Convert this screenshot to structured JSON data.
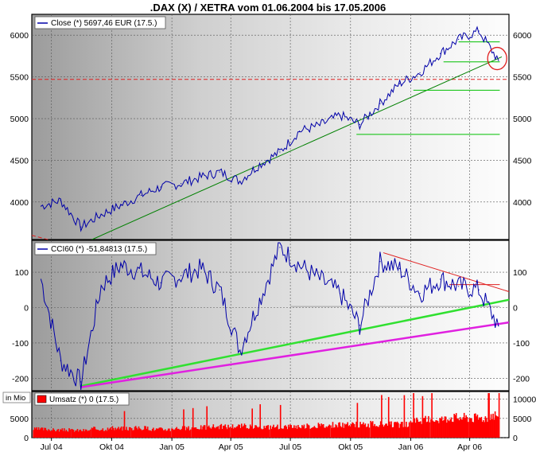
{
  "chart_data": [
    {
      "type": "line",
      "title": ".DAX (X) / XETRA vom 01.06.2004 bis 17.05.2006",
      "legend": "Close (*) 5697,46 EUR (17.5.)",
      "y_ticks": [
        4000,
        4500,
        5000,
        5500,
        6000
      ],
      "ylim": [
        3550,
        6250
      ],
      "series": [
        {
          "values_by_month": [
            {
              "x": "2004-06",
              "y": 3950
            },
            {
              "x": "2004-07",
              "y": 4020
            },
            {
              "x": "2004-08",
              "y": 3700
            },
            {
              "x": "2004-09",
              "y": 3850
            },
            {
              "x": "2004-10",
              "y": 3960
            },
            {
              "x": "2004-11",
              "y": 4080
            },
            {
              "x": "2004-12",
              "y": 4180
            },
            {
              "x": "2005-01",
              "y": 4220
            },
            {
              "x": "2005-02",
              "y": 4300
            },
            {
              "x": "2005-03",
              "y": 4360
            },
            {
              "x": "2005-04",
              "y": 4250
            },
            {
              "x": "2005-05",
              "y": 4450
            },
            {
              "x": "2005-06",
              "y": 4600
            },
            {
              "x": "2005-07",
              "y": 4850
            },
            {
              "x": "2005-08",
              "y": 4920
            },
            {
              "x": "2005-09",
              "y": 5040
            },
            {
              "x": "2005-10",
              "y": 4930
            },
            {
              "x": "2005-11",
              "y": 5180
            },
            {
              "x": "2005-12",
              "y": 5420
            },
            {
              "x": "2006-01",
              "y": 5550
            },
            {
              "x": "2006-02",
              "y": 5780
            },
            {
              "x": "2006-03",
              "y": 5950
            },
            {
              "x": "2006-04",
              "y": 6050
            },
            {
              "x": "2006-05",
              "y": 5697
            }
          ]
        }
      ],
      "reference_lines": [
        {
          "kind": "horizontal",
          "y": 5470,
          "color": "#e02020",
          "style": "dashed"
        },
        {
          "kind": "trend",
          "from": {
            "x": "2004-06-01",
            "y": 3600
          },
          "to": {
            "x": "2004-07-10",
            "y": 3520
          },
          "color": "#e02020",
          "style": "dashed"
        },
        {
          "kind": "trend",
          "from": {
            "x": "2004-09-01",
            "y": 3550
          },
          "to": {
            "x": "2006-05-20",
            "y": 5740
          },
          "color": "#008000"
        },
        {
          "kind": "horizontal",
          "y": 4810,
          "from": "2005-10-10",
          "to": "2006-05-17",
          "color": "#00c000"
        },
        {
          "kind": "horizontal",
          "y": 5340,
          "from": "2006-01-05",
          "to": "2006-05-17",
          "color": "#00c000"
        },
        {
          "kind": "horizontal",
          "y": 5680,
          "from": "2006-02-20",
          "to": "2006-05-17",
          "color": "#00c000"
        },
        {
          "kind": "horizontal",
          "y": 5920,
          "from": "2006-03-15",
          "to": "2006-05-17",
          "color": "#00c000"
        }
      ],
      "grid": true,
      "highlight_circle": {
        "x": "2006-05-13",
        "y": 5720,
        "color": "#e02020"
      }
    },
    {
      "type": "line",
      "legend": "CCI60 (*) -51,84813 (17.5.)",
      "y_ticks": [
        -200,
        -100,
        0,
        100
      ],
      "ylim": [
        -235,
        190
      ],
      "series": [
        {
          "values_by_month": [
            {
              "x": "2004-06",
              "y": 80
            },
            {
              "x": "2004-07",
              "y": -150
            },
            {
              "x": "2004-08",
              "y": -210
            },
            {
              "x": "2004-09",
              "y": 60
            },
            {
              "x": "2004-10",
              "y": 120
            },
            {
              "x": "2004-11",
              "y": 100
            },
            {
              "x": "2004-12",
              "y": 70
            },
            {
              "x": "2005-01",
              "y": 90
            },
            {
              "x": "2005-02",
              "y": 110
            },
            {
              "x": "2005-03",
              "y": 50
            },
            {
              "x": "2005-04",
              "y": -120
            },
            {
              "x": "2005-05",
              "y": 20
            },
            {
              "x": "2005-06",
              "y": 170
            },
            {
              "x": "2005-07",
              "y": 120
            },
            {
              "x": "2005-08",
              "y": 80
            },
            {
              "x": "2005-09",
              "y": 40
            },
            {
              "x": "2005-10",
              "y": -50
            },
            {
              "x": "2005-11",
              "y": 130
            },
            {
              "x": "2005-12",
              "y": 110
            },
            {
              "x": "2006-01",
              "y": 40
            },
            {
              "x": "2006-02",
              "y": 80
            },
            {
              "x": "2006-03",
              "y": 60
            },
            {
              "x": "2006-04",
              "y": 50
            },
            {
              "x": "2006-05",
              "y": -52
            }
          ]
        }
      ],
      "reference_lines": [
        {
          "kind": "horizontal",
          "y": 3,
          "from": "2005-07-01",
          "to": "2006-05-17",
          "color": "#a0a0a0"
        },
        {
          "kind": "trend",
          "from": {
            "x": "2005-11-20",
            "y": 155
          },
          "to": {
            "x": "2006-05-31",
            "y": 45
          },
          "color": "#e02020"
        },
        {
          "kind": "horizontal",
          "y": 65,
          "from": "2006-03-01",
          "to": "2006-05-17",
          "color": "#e02020"
        },
        {
          "kind": "trend",
          "from": {
            "x": "2004-08-15",
            "y": -222
          },
          "to": {
            "x": "2006-05-31",
            "y": 22
          },
          "color": "#30e030"
        },
        {
          "kind": "trend",
          "from": {
            "x": "2004-08-15",
            "y": -225
          },
          "to": {
            "x": "2006-05-31",
            "y": -42
          },
          "color": "#e020e0"
        }
      ],
      "grid": true
    },
    {
      "type": "bar",
      "legend": "Umsatz (*) 0 (17.5.)",
      "unit": "in Mio",
      "y_ticks": [
        0,
        5000,
        10000
      ],
      "ylim": [
        0,
        12000
      ],
      "series": [
        {
          "values_by_month": [
            {
              "x": "2004-06",
              "y": 2200
            },
            {
              "x": "2004-07",
              "y": 2000
            },
            {
              "x": "2004-08",
              "y": 1900
            },
            {
              "x": "2004-09",
              "y": 2300
            },
            {
              "x": "2004-10",
              "y": 2400
            },
            {
              "x": "2004-11",
              "y": 2500
            },
            {
              "x": "2004-12",
              "y": 2200
            },
            {
              "x": "2005-01",
              "y": 2500
            },
            {
              "x": "2005-02",
              "y": 2700
            },
            {
              "x": "2005-03",
              "y": 2900
            },
            {
              "x": "2005-04",
              "y": 3000
            },
            {
              "x": "2005-05",
              "y": 2800
            },
            {
              "x": "2005-06",
              "y": 2900
            },
            {
              "x": "2005-07",
              "y": 3000
            },
            {
              "x": "2005-08",
              "y": 3100
            },
            {
              "x": "2005-09",
              "y": 3300
            },
            {
              "x": "2005-10",
              "y": 3400
            },
            {
              "x": "2005-11",
              "y": 3500
            },
            {
              "x": "2005-12",
              "y": 3400
            },
            {
              "x": "2006-01",
              "y": 4600
            },
            {
              "x": "2006-02",
              "y": 4900
            },
            {
              "x": "2006-03",
              "y": 5300
            },
            {
              "x": "2006-04",
              "y": 5200
            },
            {
              "x": "2006-05",
              "y": 6000
            }
          ]
        }
      ],
      "grid": true
    }
  ],
  "x_axis": {
    "start": "2004-06-01",
    "end": "2006-05-31",
    "tick_labels": [
      {
        "label": "Jul 04",
        "date": "2004-07-01"
      },
      {
        "label": "Okt 04",
        "date": "2004-10-01"
      },
      {
        "label": "Jan 05",
        "date": "2005-01-01"
      },
      {
        "label": "Apr 05",
        "date": "2005-04-01"
      },
      {
        "label": "Jul 05",
        "date": "2005-07-01"
      },
      {
        "label": "Okt 05",
        "date": "2005-10-01"
      },
      {
        "label": "Jan 06",
        "date": "2006-01-01"
      },
      {
        "label": "Apr 06",
        "date": "2006-04-01"
      }
    ]
  },
  "colors": {
    "price_line": "#0000a8",
    "cci_line": "#0000a8",
    "volume_bars": "#ff0000"
  }
}
